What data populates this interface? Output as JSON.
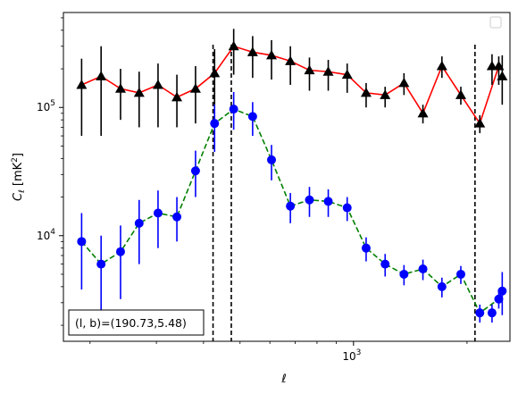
{
  "chart_data": {
    "type": "line",
    "title": "",
    "xlabel": "ℓ",
    "ylabel": "C_ℓ  [mK²]",
    "xscale": "log",
    "yscale": "log",
    "xlim": [
      170,
      2600
    ],
    "ylim": [
      1500,
      550000
    ],
    "xticks": [
      {
        "value": 1000,
        "base": "10",
        "exp": "3"
      }
    ],
    "yticks": [
      {
        "value": 10000,
        "base": "10",
        "exp": "4"
      },
      {
        "value": 100000,
        "base": "10",
        "exp": "5"
      }
    ],
    "grid": false,
    "legend": "top-right",
    "legend_entries": [],
    "vlines": [
      424,
      474,
      2100
    ],
    "annotation": "(l, b)=(190.73,5.48)",
    "series": [
      {
        "color": "#ff0000",
        "marker": "triangle",
        "marker_color": "#000000",
        "errbar_color": "#000000",
        "linestyle": "solid",
        "x": [
          190,
          214,
          241,
          270,
          303,
          340,
          381,
          428,
          481,
          540,
          606,
          680,
          764,
          857,
          962,
          1080,
          1213,
          1361,
          1528,
          1716,
          1926,
          2163,
          2428
        ],
        "y": [
          150000,
          175000,
          140000,
          130000,
          150000,
          120000,
          140000,
          185000,
          300000,
          270000,
          255000,
          230000,
          195000,
          190000,
          180000,
          130000,
          125000,
          155000,
          90000,
          210000,
          125000,
          75000,
          210000
        ],
        "err_low": [
          90000,
          115000,
          60000,
          60000,
          80000,
          50000,
          65000,
          80000,
          120000,
          100000,
          90000,
          80000,
          60000,
          55000,
          50000,
          30000,
          25000,
          30000,
          15000,
          40000,
          20000,
          12000,
          60000
        ],
        "err_high": [
          90000,
          125000,
          60000,
          60000,
          70000,
          60000,
          70000,
          100000,
          110000,
          90000,
          80000,
          70000,
          50000,
          45000,
          40000,
          25000,
          20000,
          30000,
          15000,
          40000,
          20000,
          12000,
          40000
        ]
      },
      {
        "color": "#008000",
        "marker": "circle",
        "marker_color": "#0000ff",
        "errbar_color": "#0000ff",
        "linestyle": "dashed",
        "x": [
          190,
          214,
          241,
          270,
          303,
          340,
          381,
          428,
          481,
          540,
          606,
          680,
          764,
          857,
          962,
          1080,
          1213,
          1361,
          1528,
          1716,
          1926,
          2163,
          2428
        ],
        "y": [
          9000,
          6000,
          7500,
          12500,
          15000,
          14000,
          32000,
          75000,
          97000,
          85000,
          39000,
          17000,
          19000,
          18500,
          16500,
          8000,
          6000,
          5000,
          5500,
          4000,
          5000,
          2500,
          3200
        ],
        "err_low": [
          5200,
          3600,
          4300,
          6500,
          7000,
          5000,
          12000,
          30000,
          30000,
          25000,
          12000,
          4500,
          5000,
          4500,
          3500,
          1700,
          1200,
          900,
          1000,
          700,
          800,
          400,
          500
        ],
        "err_high": [
          6000,
          4000,
          4500,
          6500,
          7500,
          6000,
          14000,
          30000,
          35000,
          25000,
          12000,
          4500,
          5000,
          4500,
          3500,
          1700,
          1200,
          900,
          1000,
          700,
          800,
          400,
          500
        ]
      }
    ],
    "extra_points": [
      {
        "series": 0,
        "x": 2330,
        "y": 210000,
        "err_low": 60000,
        "err_high": 50000
      },
      {
        "series": 0,
        "x": 2480,
        "y": 175000,
        "err_low": 70000,
        "err_high": 80000
      },
      {
        "series": 1,
        "x": 2330,
        "y": 2500,
        "err_low": 400,
        "err_high": 400
      },
      {
        "series": 1,
        "x": 2480,
        "y": 3700,
        "err_low": 1300,
        "err_high": 1500
      }
    ]
  }
}
